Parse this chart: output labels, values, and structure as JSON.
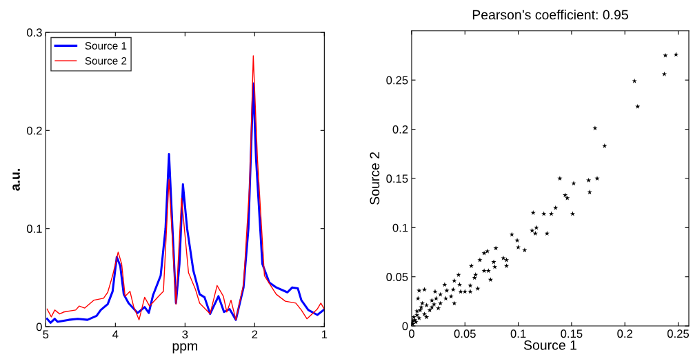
{
  "chart_data": [
    {
      "type": "line",
      "xlabel": "ppm",
      "ylabel": "a.u.",
      "xlim": [
        5,
        1
      ],
      "ylim": [
        0,
        0.3
      ],
      "xticks": [
        5,
        4,
        3,
        2,
        1
      ],
      "yticks": [
        0,
        0.1,
        0.2,
        0.3
      ],
      "legend": "top left",
      "grid": false,
      "marker": "none",
      "line_style": "solid",
      "series": [
        {
          "name": "Source 1",
          "color": "#0000ff",
          "x": [
            4.98,
            4.93,
            4.87,
            4.83,
            4.67,
            4.54,
            4.4,
            4.27,
            4.21,
            4.11,
            4.04,
            3.98,
            3.93,
            3.88,
            3.81,
            3.68,
            3.58,
            3.52,
            3.46,
            3.35,
            3.28,
            3.23,
            3.18,
            3.13,
            3.08,
            3.03,
            2.97,
            2.88,
            2.79,
            2.72,
            2.64,
            2.52,
            2.44,
            2.36,
            2.27,
            2.16,
            2.09,
            2.02,
            1.98,
            1.89,
            1.79,
            1.69,
            1.53,
            1.46,
            1.38,
            1.33,
            1.23,
            1.1,
            1.01
          ],
          "values": [
            0.008,
            0.004,
            0.008,
            0.005,
            0.007,
            0.008,
            0.007,
            0.011,
            0.017,
            0.023,
            0.036,
            0.071,
            0.062,
            0.033,
            0.024,
            0.014,
            0.02,
            0.014,
            0.032,
            0.052,
            0.1,
            0.176,
            0.1,
            0.024,
            0.064,
            0.145,
            0.1,
            0.057,
            0.033,
            0.03,
            0.013,
            0.031,
            0.015,
            0.018,
            0.007,
            0.04,
            0.1,
            0.248,
            0.171,
            0.064,
            0.045,
            0.04,
            0.035,
            0.04,
            0.039,
            0.027,
            0.017,
            0.012,
            0.017
          ]
        },
        {
          "name": "Source 2",
          "color": "#ff0000",
          "x": [
            4.98,
            4.92,
            4.87,
            4.8,
            4.74,
            4.57,
            4.52,
            4.44,
            4.31,
            4.17,
            4.11,
            4.04,
            3.96,
            3.91,
            3.86,
            3.79,
            3.74,
            3.66,
            3.58,
            3.51,
            3.38,
            3.31,
            3.23,
            3.13,
            3.05,
            2.95,
            2.85,
            2.79,
            2.64,
            2.54,
            2.45,
            2.4,
            2.34,
            2.27,
            2.16,
            2.07,
            2.02,
            1.96,
            1.86,
            1.69,
            1.56,
            1.41,
            1.33,
            1.25,
            1.1,
            1.05,
            1.0
          ],
          "values": [
            0.018,
            0.01,
            0.017,
            0.013,
            0.015,
            0.017,
            0.021,
            0.019,
            0.027,
            0.029,
            0.035,
            0.052,
            0.076,
            0.064,
            0.031,
            0.036,
            0.021,
            0.007,
            0.03,
            0.021,
            0.031,
            0.036,
            0.15,
            0.023,
            0.131,
            0.055,
            0.038,
            0.024,
            0.013,
            0.042,
            0.031,
            0.015,
            0.027,
            0.007,
            0.043,
            0.148,
            0.276,
            0.171,
            0.052,
            0.033,
            0.026,
            0.024,
            0.017,
            0.008,
            0.018,
            0.024,
            0.018
          ]
        }
      ]
    },
    {
      "type": "scatter",
      "title": "Pearson’s coefficient: 0.95",
      "xlabel": "Source 1",
      "ylabel": "Source 2",
      "xlim": [
        0,
        0.26
      ],
      "ylim": [
        0,
        0.3
      ],
      "xticks": [
        0,
        0.05,
        0.1,
        0.15,
        0.2,
        0.25
      ],
      "yticks": [
        0,
        0.05,
        0.1,
        0.15,
        0.2,
        0.25
      ],
      "grid": false,
      "marker": "star",
      "series": [
        {
          "color": "#000000",
          "x": [
            0.248,
            0.238,
            0.237,
            0.209,
            0.212,
            0.172,
            0.181,
            0.139,
            0.166,
            0.174,
            0.152,
            0.167,
            0.144,
            0.146,
            0.151,
            0.135,
            0.114,
            0.124,
            0.131,
            0.113,
            0.117,
            0.116,
            0.127,
            0.094,
            0.099,
            0.1,
            0.106,
            0.079,
            0.086,
            0.089,
            0.089,
            0.078,
            0.077,
            0.071,
            0.068,
            0.064,
            0.068,
            0.072,
            0.074,
            0.062,
            0.056,
            0.06,
            0.059,
            0.055,
            0.05,
            0.055,
            0.046,
            0.044,
            0.045,
            0.04,
            0.039,
            0.037,
            0.031,
            0.033,
            0.027,
            0.022,
            0.023,
            0.019,
            0.012,
            0.007,
            0.006,
            0.01,
            0.014,
            0.017,
            0.008,
            0.005,
            0.003,
            0.001,
            0.004,
            0.007,
            0.012,
            0.019,
            0.027,
            0.032,
            0.04,
            0.001,
            0.002,
            0.005,
            0.009,
            0.021,
            0.025,
            0.014
          ],
          "values": [
            0.276,
            0.275,
            0.256,
            0.249,
            0.223,
            0.201,
            0.183,
            0.15,
            0.148,
            0.15,
            0.145,
            0.136,
            0.133,
            0.13,
            0.114,
            0.12,
            0.115,
            0.114,
            0.114,
            0.097,
            0.1,
            0.094,
            0.094,
            0.093,
            0.087,
            0.08,
            0.077,
            0.079,
            0.069,
            0.067,
            0.061,
            0.06,
            0.065,
            0.076,
            0.074,
            0.067,
            0.056,
            0.056,
            0.047,
            0.038,
            0.061,
            0.052,
            0.049,
            0.041,
            0.035,
            0.035,
            0.035,
            0.052,
            0.042,
            0.046,
            0.037,
            0.03,
            0.042,
            0.036,
            0.032,
            0.035,
            0.028,
            0.026,
            0.037,
            0.036,
            0.028,
            0.023,
            0.021,
            0.016,
            0.016,
            0.011,
            0.006,
            0.002,
            0.004,
            0.008,
            0.012,
            0.019,
            0.023,
            0.028,
            0.023,
            0.005,
            0.009,
            0.015,
            0.019,
            0.022,
            0.018,
            0.009
          ]
        }
      ]
    }
  ]
}
